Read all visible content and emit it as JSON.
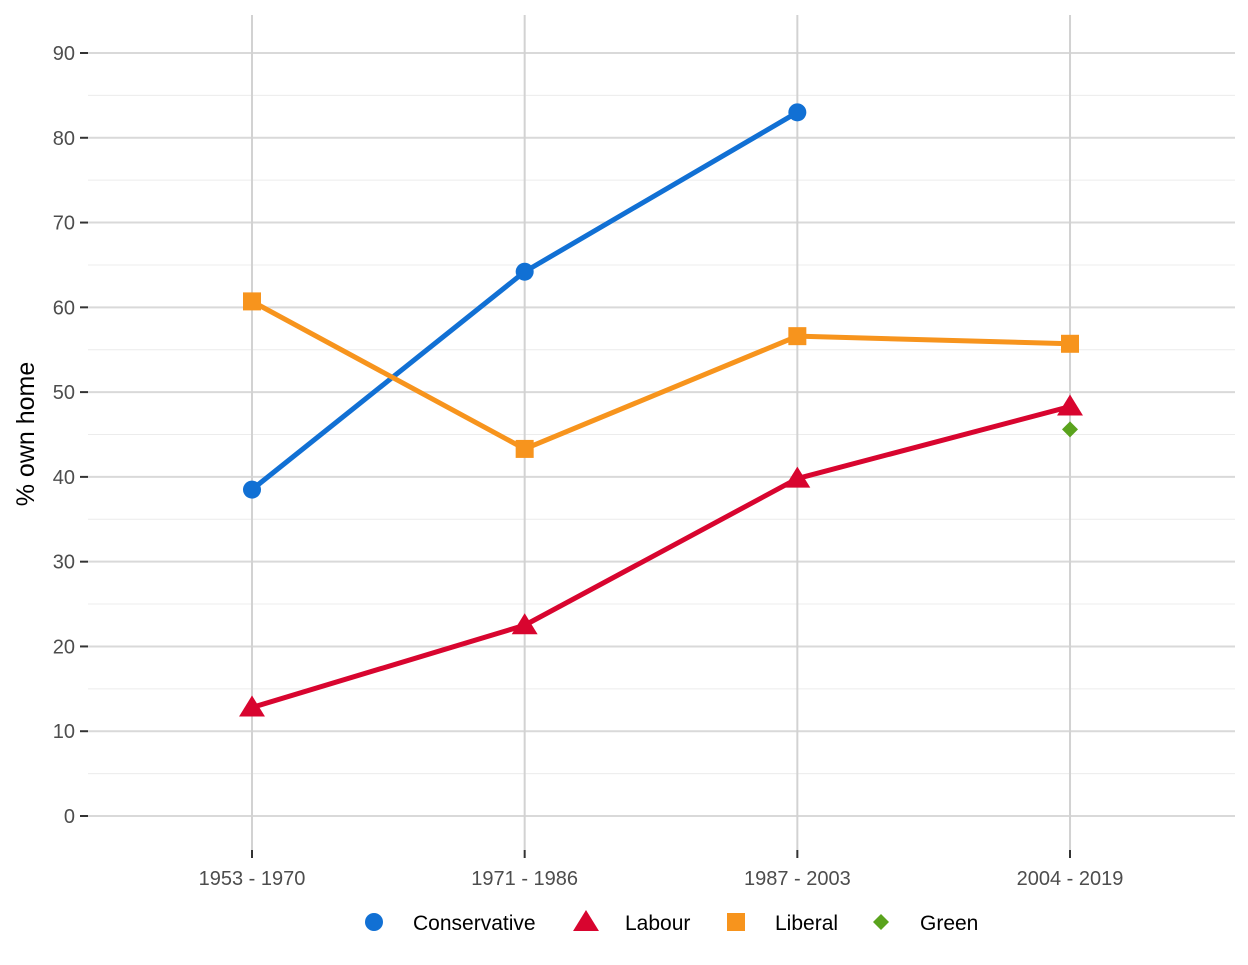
{
  "chart_data": {
    "type": "line",
    "title": "",
    "xlabel": "",
    "ylabel": "% own home",
    "categories": [
      "1953 - 1970",
      "1971 - 1986",
      "1987 - 2003",
      "2004 - 2019"
    ],
    "ylim": [
      0,
      90
    ],
    "y_ticks": [
      "0",
      "10",
      "20",
      "30",
      "40",
      "50",
      "60",
      "70",
      "80",
      "90"
    ],
    "grid": true,
    "legend_position": "bottom",
    "series": [
      {
        "name": "Conservative",
        "marker": "circle",
        "color": "#1170D4",
        "values": [
          38.5,
          64.2,
          83.0,
          null
        ]
      },
      {
        "name": "Labour",
        "marker": "triangle",
        "color": "#D8052F",
        "values": [
          12.8,
          22.5,
          39.8,
          48.3
        ]
      },
      {
        "name": "Liberal",
        "marker": "square",
        "color": "#F7941D",
        "values": [
          60.7,
          43.3,
          56.6,
          55.7
        ]
      },
      {
        "name": "Green",
        "marker": "diamond",
        "color": "#5AA31D",
        "values": [
          null,
          null,
          null,
          45.6
        ]
      }
    ]
  }
}
